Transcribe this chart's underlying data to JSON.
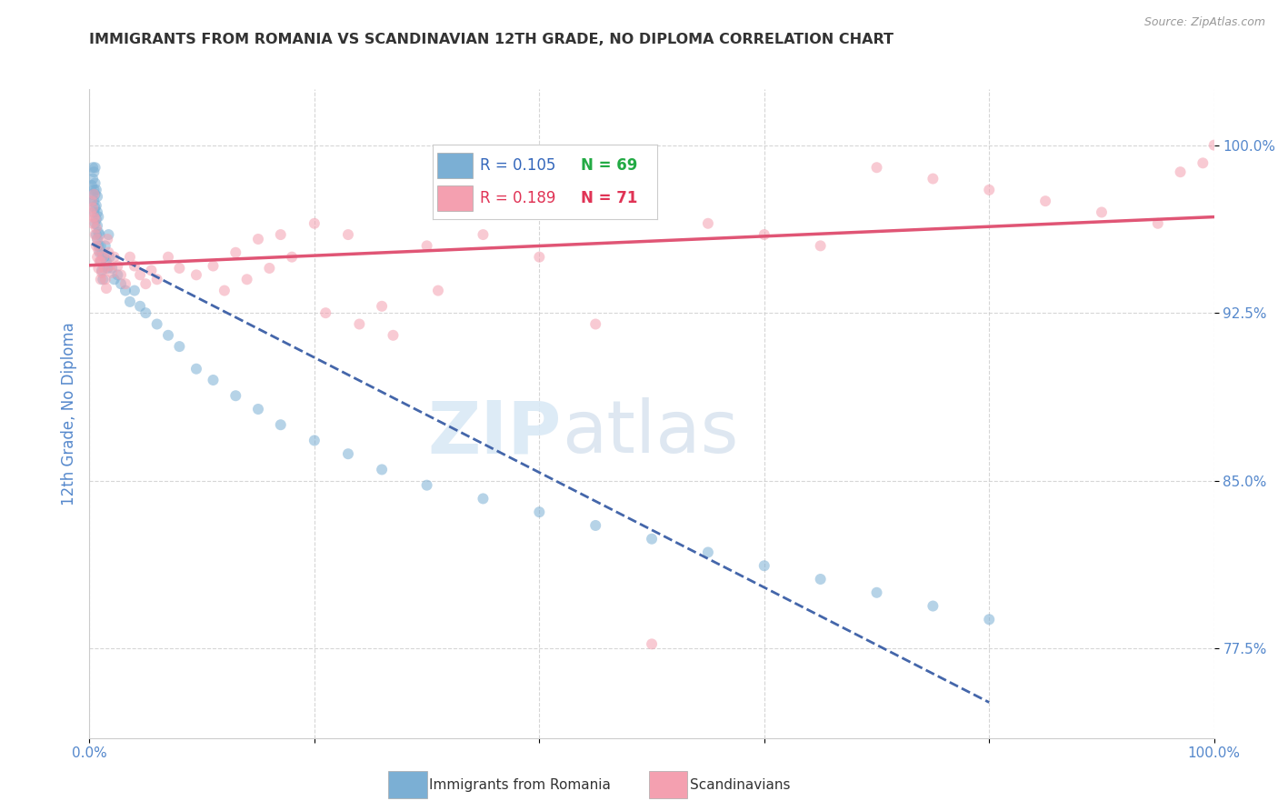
{
  "title": "IMMIGRANTS FROM ROMANIA VS SCANDINAVIAN 12TH GRADE, NO DIPLOMA CORRELATION CHART",
  "source": "Source: ZipAtlas.com",
  "ylabel": "12th Grade, No Diploma",
  "xlim": [
    0.0,
    1.0
  ],
  "ylim": [
    0.735,
    1.025
  ],
  "yticks": [
    0.775,
    0.85,
    0.925,
    1.0
  ],
  "ytick_labels": [
    "77.5%",
    "85.0%",
    "92.5%",
    "100.0%"
  ],
  "xtick_left_label": "0.0%",
  "xtick_right_label": "100.0%",
  "legend_r1": "R = 0.105",
  "legend_n1": "N = 69",
  "legend_r2": "R = 0.189",
  "legend_n2": "N = 71",
  "legend_label1": "Immigrants from Romania",
  "legend_label2": "Scandinavians",
  "blue_color": "#7BAFD4",
  "pink_color": "#F4A0B0",
  "blue_line_color": "#4466AA",
  "pink_line_color": "#E05575",
  "scatter_alpha": 0.55,
  "marker_size": 75,
  "background_color": "#ffffff",
  "grid_color": "#cccccc",
  "axis_label_color": "#5588CC",
  "title_color": "#333333",
  "romania_x": [
    0.002,
    0.002,
    0.003,
    0.003,
    0.003,
    0.004,
    0.004,
    0.004,
    0.004,
    0.005,
    0.005,
    0.005,
    0.005,
    0.005,
    0.006,
    0.006,
    0.006,
    0.006,
    0.007,
    0.007,
    0.007,
    0.007,
    0.008,
    0.008,
    0.008,
    0.009,
    0.009,
    0.01,
    0.01,
    0.011,
    0.011,
    0.012,
    0.013,
    0.014,
    0.015,
    0.016,
    0.017,
    0.018,
    0.02,
    0.022,
    0.025,
    0.028,
    0.032,
    0.036,
    0.04,
    0.045,
    0.05,
    0.06,
    0.07,
    0.08,
    0.095,
    0.11,
    0.13,
    0.15,
    0.17,
    0.2,
    0.23,
    0.26,
    0.3,
    0.35,
    0.4,
    0.45,
    0.5,
    0.55,
    0.6,
    0.65,
    0.7,
    0.75,
    0.8
  ],
  "romania_y": [
    0.975,
    0.982,
    0.978,
    0.985,
    0.99,
    0.97,
    0.975,
    0.98,
    0.988,
    0.965,
    0.972,
    0.978,
    0.983,
    0.99,
    0.96,
    0.967,
    0.973,
    0.98,
    0.958,
    0.964,
    0.97,
    0.977,
    0.955,
    0.961,
    0.968,
    0.952,
    0.96,
    0.948,
    0.955,
    0.944,
    0.952,
    0.94,
    0.95,
    0.955,
    0.948,
    0.945,
    0.96,
    0.95,
    0.945,
    0.94,
    0.942,
    0.938,
    0.935,
    0.93,
    0.935,
    0.928,
    0.925,
    0.92,
    0.915,
    0.91,
    0.9,
    0.895,
    0.888,
    0.882,
    0.875,
    0.868,
    0.862,
    0.855,
    0.848,
    0.842,
    0.836,
    0.83,
    0.824,
    0.818,
    0.812,
    0.806,
    0.8,
    0.794,
    0.788
  ],
  "scand_x": [
    0.001,
    0.002,
    0.003,
    0.003,
    0.004,
    0.004,
    0.005,
    0.005,
    0.006,
    0.006,
    0.007,
    0.007,
    0.008,
    0.008,
    0.009,
    0.01,
    0.01,
    0.011,
    0.012,
    0.013,
    0.014,
    0.015,
    0.016,
    0.017,
    0.018,
    0.02,
    0.022,
    0.025,
    0.028,
    0.032,
    0.036,
    0.04,
    0.045,
    0.05,
    0.055,
    0.06,
    0.07,
    0.08,
    0.095,
    0.11,
    0.13,
    0.15,
    0.17,
    0.2,
    0.23,
    0.26,
    0.3,
    0.35,
    0.4,
    0.45,
    0.5,
    0.55,
    0.6,
    0.65,
    0.7,
    0.75,
    0.8,
    0.85,
    0.9,
    0.95,
    0.97,
    0.99,
    1.0,
    0.12,
    0.14,
    0.16,
    0.18,
    0.21,
    0.24,
    0.27,
    0.31
  ],
  "scand_y": [
    0.97,
    0.975,
    0.965,
    0.972,
    0.968,
    0.978,
    0.96,
    0.967,
    0.955,
    0.963,
    0.95,
    0.958,
    0.945,
    0.953,
    0.948,
    0.94,
    0.948,
    0.943,
    0.95,
    0.945,
    0.94,
    0.936,
    0.958,
    0.952,
    0.946,
    0.943,
    0.95,
    0.946,
    0.942,
    0.938,
    0.95,
    0.946,
    0.942,
    0.938,
    0.944,
    0.94,
    0.95,
    0.945,
    0.942,
    0.946,
    0.952,
    0.958,
    0.96,
    0.965,
    0.96,
    0.928,
    0.955,
    0.96,
    0.95,
    0.92,
    0.777,
    0.965,
    0.96,
    0.955,
    0.99,
    0.985,
    0.98,
    0.975,
    0.97,
    0.965,
    0.988,
    0.992,
    1.0,
    0.935,
    0.94,
    0.945,
    0.95,
    0.925,
    0.92,
    0.915,
    0.935
  ]
}
